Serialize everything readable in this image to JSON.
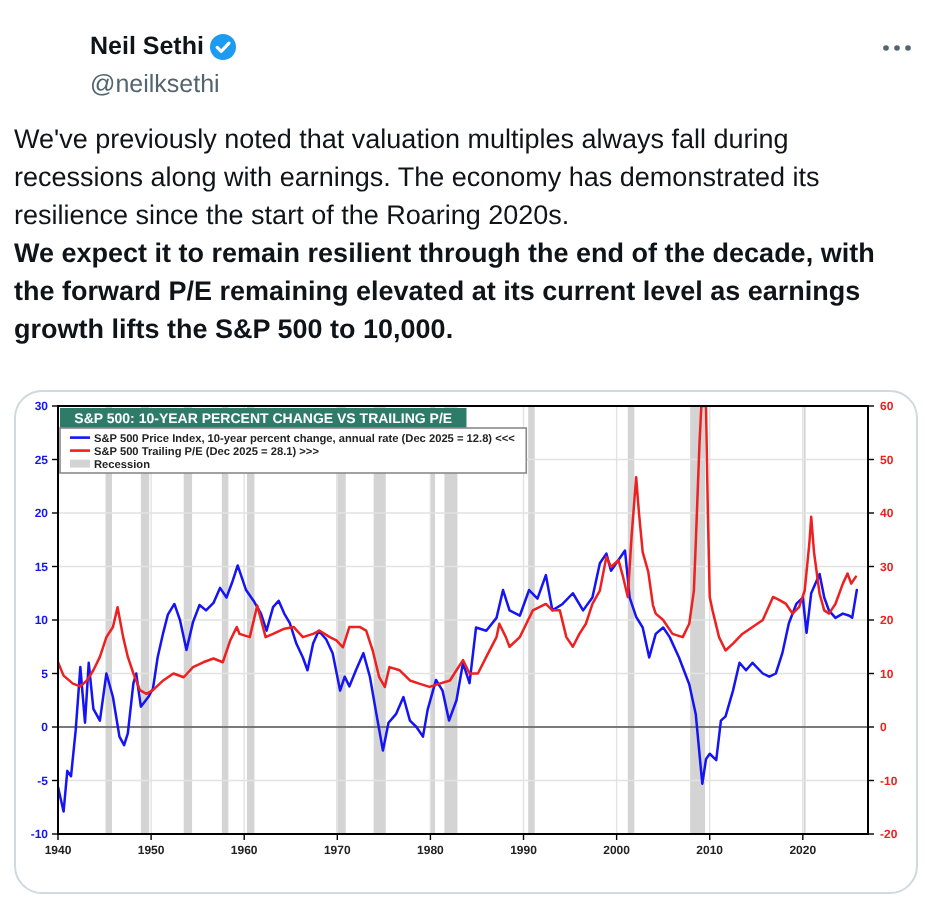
{
  "chart_data": {
    "type": "line",
    "title": "S&P 500: 10-YEAR PERCENT CHANGE VS TRAILING P/E",
    "annotations": [
      "Neil Sethi",
      "@neilksethi",
      "We've previously noted that valuation multiples always fall during recessions along with earnings. The economy has demonstrated its resilience since the start of the Roaring 2020s.",
      "We expect it to remain resilient through the end of the decade, with the forward P/E remaining elevated at its current level as earnings growth lifts the S&P 500 to 10,000."
    ],
    "series": [
      {
        "name": "S&P 500 Price Index, 10-year percent change, annual rate (Dec 2025 = 12.8) <<<",
        "color": "#1414f5",
        "x": [
          1940.0,
          1940.6,
          1941.0,
          1941.4,
          1941.9,
          1942.4,
          1942.9,
          1943.3,
          1943.8,
          1944.5,
          1945.2,
          1945.9,
          1946.6,
          1947.1,
          1947.5,
          1948.1,
          1948.4,
          1948.9,
          1949.7,
          1950.2,
          1950.7,
          1951.3,
          1951.8,
          1952.5,
          1953.1,
          1953.8,
          1954.5,
          1955.2,
          1955.9,
          1956.7,
          1957.4,
          1958.1,
          1958.7,
          1959.3,
          1960.2,
          1961.0,
          1961.8,
          1962.4,
          1963.1,
          1963.7,
          1964.3,
          1964.9,
          1965.6,
          1966.3,
          1966.8,
          1967.4,
          1968.0,
          1968.8,
          1969.5,
          1970.3,
          1970.8,
          1971.3,
          1972.0,
          1972.8,
          1973.5,
          1974.2,
          1974.9,
          1975.5,
          1976.3,
          1977.1,
          1977.8,
          1978.5,
          1979.2,
          1979.7,
          1980.6,
          1981.3,
          1982.0,
          1982.8,
          1983.5,
          1984.2,
          1984.9,
          1986.0,
          1987.1,
          1987.8,
          1988.5,
          1989.6,
          1990.6,
          1991.5,
          1992.4,
          1993.1,
          1994.2,
          1995.3,
          1996.4,
          1997.4,
          1998.2,
          1998.9,
          1999.4,
          2000.2,
          2000.9,
          2001.4,
          2002.1,
          2002.8,
          2003.5,
          2004.2,
          2005.0,
          2005.7,
          2006.7,
          2007.8,
          2008.5,
          2009.2,
          2009.6,
          2010.0,
          2010.7,
          2011.2,
          2011.7,
          2012.5,
          2013.2,
          2013.9,
          2014.6,
          2015.7,
          2016.4,
          2017.1,
          2017.8,
          2018.5,
          2019.3,
          2020.0,
          2020.4,
          2020.9,
          2021.8,
          2022.3,
          2022.8,
          2023.5,
          2024.3,
          2025.0,
          2025.3,
          2025.8
        ],
        "values": [
          -5.6,
          -7.9,
          -4.1,
          -4.6,
          -0.3,
          5.6,
          0.4,
          6.0,
          1.7,
          0.6,
          5.0,
          2.8,
          -0.9,
          -1.7,
          -0.6,
          4.1,
          5.0,
          1.9,
          2.8,
          3.6,
          6.5,
          8.8,
          10.5,
          11.5,
          10.0,
          7.2,
          9.8,
          11.4,
          10.9,
          11.6,
          13.0,
          12.1,
          13.5,
          15.1,
          12.8,
          11.8,
          10.6,
          9.0,
          11.2,
          11.8,
          10.6,
          9.7,
          7.8,
          6.5,
          5.3,
          7.8,
          9.0,
          8.2,
          6.9,
          3.4,
          4.7,
          3.8,
          5.3,
          6.9,
          4.7,
          1.2,
          -2.2,
          0.4,
          1.2,
          2.8,
          0.6,
          0.0,
          -0.9,
          1.6,
          4.4,
          3.4,
          0.6,
          2.5,
          6.0,
          4.1,
          9.3,
          9.0,
          10.2,
          12.8,
          10.9,
          10.4,
          12.8,
          12.0,
          14.2,
          10.9,
          11.5,
          12.5,
          10.9,
          12.1,
          15.3,
          16.2,
          14.6,
          15.6,
          16.5,
          12.1,
          10.3,
          9.3,
          6.5,
          8.7,
          9.3,
          8.4,
          6.5,
          4.0,
          1.2,
          -5.3,
          -3.0,
          -2.5,
          -3.1,
          0.6,
          1.0,
          3.4,
          6.0,
          5.3,
          6.0,
          5.0,
          4.7,
          5.0,
          6.9,
          9.7,
          11.5,
          12.1,
          8.8,
          12.5,
          14.3,
          12.1,
          10.9,
          10.2,
          10.6,
          10.4,
          10.2,
          12.8
        ]
      },
      {
        "name": "S&P 500 Trailing P/E (Dec 2025 = 28.1) >>>",
        "color": "#ee2020",
        "axis": "y2",
        "x": [
          1940.0,
          1940.6,
          1941.6,
          1942.4,
          1943.1,
          1943.8,
          1944.5,
          1945.2,
          1945.9,
          1946.4,
          1947.0,
          1947.5,
          1948.1,
          1948.8,
          1949.5,
          1950.2,
          1951.3,
          1952.4,
          1953.5,
          1954.5,
          1955.6,
          1956.7,
          1957.7,
          1958.5,
          1959.2,
          1959.5,
          1960.6,
          1961.4,
          1962.3,
          1963.1,
          1964.2,
          1965.3,
          1966.3,
          1967.4,
          1968.1,
          1969.2,
          1969.9,
          1970.6,
          1971.3,
          1972.4,
          1973.1,
          1973.8,
          1974.5,
          1975.1,
          1975.6,
          1976.7,
          1977.8,
          1978.8,
          1979.9,
          1981.0,
          1982.1,
          1982.8,
          1983.5,
          1984.2,
          1985.1,
          1986.0,
          1987.1,
          1987.4,
          1988.1,
          1988.5,
          1989.6,
          1990.3,
          1991.0,
          1992.4,
          1993.1,
          1993.9,
          1994.6,
          1995.3,
          1996.0,
          1996.7,
          1997.4,
          1998.2,
          1998.9,
          1999.4,
          2000.2,
          2000.7,
          2001.2,
          2001.6,
          2002.1,
          2002.4,
          2002.8,
          2003.4,
          2003.9,
          2004.2,
          2005.0,
          2006.0,
          2007.1,
          2007.8,
          2008.3,
          2008.5,
          2008.9,
          2009.1,
          2009.6,
          2009.8,
          2010.0,
          2010.3,
          2011.0,
          2011.7,
          2012.5,
          2013.5,
          2014.6,
          2015.7,
          2016.8,
          2017.5,
          2018.2,
          2018.9,
          2019.6,
          2020.2,
          2020.7,
          2020.9,
          2021.2,
          2021.8,
          2022.3,
          2022.8,
          2023.5,
          2024.3,
          2024.8,
          2025.2,
          2025.7
        ],
        "values": [
          12.1,
          9.6,
          8.1,
          7.6,
          8.7,
          10.6,
          13.1,
          16.8,
          18.7,
          22.4,
          16.8,
          13.1,
          10.0,
          6.9,
          6.2,
          6.9,
          8.7,
          10.0,
          9.3,
          11.2,
          12.1,
          12.8,
          12.1,
          16.2,
          18.7,
          17.4,
          16.8,
          22.7,
          16.8,
          17.4,
          18.3,
          18.7,
          16.8,
          17.4,
          18.0,
          16.8,
          16.2,
          14.9,
          18.7,
          18.7,
          18.0,
          14.3,
          9.3,
          7.5,
          11.2,
          10.6,
          8.7,
          8.1,
          7.5,
          8.1,
          8.7,
          10.6,
          12.5,
          10.0,
          10.0,
          13.1,
          16.8,
          19.3,
          16.8,
          15.0,
          16.8,
          19.3,
          21.8,
          23.0,
          21.8,
          21.8,
          16.8,
          15.0,
          17.4,
          19.3,
          23.0,
          25.5,
          31.8,
          29.9,
          31.2,
          28.0,
          24.3,
          35.5,
          46.7,
          40.0,
          32.7,
          29.0,
          22.8,
          21.2,
          20.0,
          17.4,
          16.8,
          19.3,
          25.5,
          34.3,
          53.0,
          60,
          60,
          40.0,
          24.3,
          21.8,
          16.8,
          14.3,
          15.6,
          17.4,
          18.7,
          20.0,
          24.3,
          23.7,
          23.0,
          21.2,
          22.4,
          25.5,
          34.3,
          39.3,
          32.7,
          24.9,
          21.8,
          21.2,
          23.0,
          26.8,
          28.7,
          26.8,
          28.1
        ]
      }
    ],
    "xlim": [
      1940,
      2027
    ],
    "xticks": [
      1940,
      1950,
      1960,
      1970,
      1980,
      1990,
      2000,
      2010,
      2020
    ],
    "ylim": [
      -10,
      30
    ],
    "yticks": [
      -10,
      -5,
      0,
      5,
      10,
      15,
      20,
      25,
      30
    ],
    "y2lim": [
      -20,
      60
    ],
    "y2ticks": [
      -20,
      -10,
      0,
      10,
      20,
      30,
      40,
      50,
      60
    ],
    "bands": [
      {
        "axis": "x",
        "from": 1945.1,
        "to": 1945.8,
        "label": "Recession",
        "color": "#d4d4d4"
      },
      {
        "axis": "x",
        "from": 1948.9,
        "to": 1949.8,
        "color": "#d4d4d4"
      },
      {
        "axis": "x",
        "from": 1953.5,
        "to": 1954.4,
        "color": "#d4d4d4"
      },
      {
        "axis": "x",
        "from": 1957.6,
        "to": 1958.3,
        "color": "#d4d4d4"
      },
      {
        "axis": "x",
        "from": 1960.3,
        "to": 1961.1,
        "color": "#d4d4d4"
      },
      {
        "axis": "x",
        "from": 1969.9,
        "to": 1970.9,
        "color": "#d4d4d4"
      },
      {
        "axis": "x",
        "from": 1973.9,
        "to": 1975.2,
        "color": "#d4d4d4"
      },
      {
        "axis": "x",
        "from": 1980.0,
        "to": 1980.5,
        "color": "#d4d4d4"
      },
      {
        "axis": "x",
        "from": 1981.5,
        "to": 1982.9,
        "color": "#d4d4d4"
      },
      {
        "axis": "x",
        "from": 1990.5,
        "to": 1991.2,
        "color": "#d4d4d4"
      },
      {
        "axis": "x",
        "from": 2001.2,
        "to": 2001.9,
        "color": "#d4d4d4"
      },
      {
        "axis": "x",
        "from": 2007.9,
        "to": 2009.5,
        "color": "#d4d4d4"
      },
      {
        "axis": "x",
        "from": 2020.1,
        "to": 2020.3,
        "color": "#d4d4d4"
      }
    ],
    "ref_lines": [
      {
        "axis": "y",
        "value": 0,
        "color": "#555555"
      }
    ],
    "grid": true,
    "legend": "top left"
  }
}
